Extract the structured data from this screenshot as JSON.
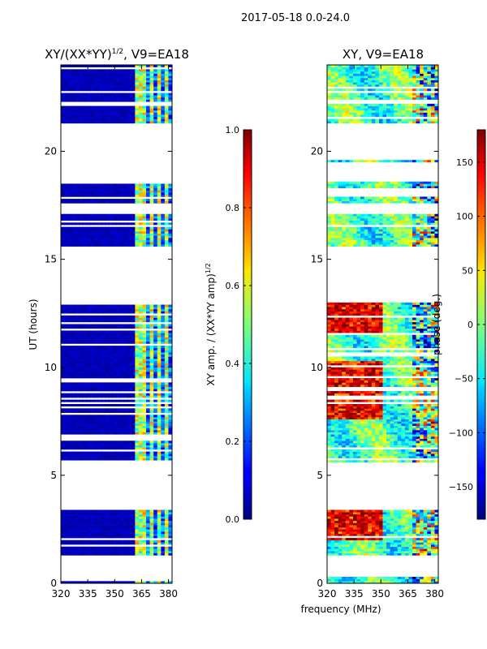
{
  "figure": {
    "suptitle": "2017-05-18 0.0-24.0",
    "xlabel": "frequency (MHz)"
  },
  "chart_data": [
    {
      "type": "heatmap",
      "title_main": "XY/(XX*YY)",
      "title_sup": "1/2",
      "title_rest": ", V9=EA18",
      "xlabel": "",
      "ylabel": "UT (hours)",
      "xlim": [
        320,
        382
      ],
      "ylim": [
        0,
        24
      ],
      "xticks": [
        320,
        335,
        350,
        365,
        380
      ],
      "yticks": [
        0,
        5,
        10,
        15,
        20
      ],
      "colorbar": {
        "label_main": "XY amp. / (XX*YY amp)",
        "label_sup": "1/2",
        "range": [
          0.0,
          1.0
        ],
        "ticks": [
          "0.0",
          "0.2",
          "0.4",
          "0.6",
          "0.8",
          "1.0"
        ],
        "tick_values": [
          0.0,
          0.2,
          0.4,
          0.6,
          0.8,
          1.0
        ]
      },
      "observed_bands_hours": [
        [
          0.0,
          0.3
        ],
        [
          1.3,
          3.4
        ],
        [
          5.5,
          12.9
        ],
        [
          15.5,
          17.0
        ],
        [
          17.5,
          18.5
        ],
        [
          19.5,
          19.6
        ],
        [
          21.3,
          24.0
        ]
      ],
      "hot_channels_mhz": [
        363.5,
        366.5,
        371.0,
        375.5,
        379.5
      ]
    },
    {
      "type": "heatmap",
      "title": "XY, V9=EA18",
      "xlabel": "",
      "ylabel": "",
      "xlim": [
        320,
        382
      ],
      "ylim": [
        0,
        24
      ],
      "xticks": [
        320,
        335,
        350,
        365,
        380
      ],
      "yticks": [
        0,
        5,
        10,
        15,
        20
      ],
      "colorbar": {
        "label": "phase (deg.)",
        "range": [
          -180,
          180
        ],
        "ticks": [
          "150",
          "100",
          "50",
          "0",
          "−50",
          "−100",
          "−150"
        ],
        "tick_values": [
          150,
          100,
          50,
          0,
          -50,
          -100,
          -150
        ]
      },
      "observed_bands_hours": [
        [
          0.0,
          0.3
        ],
        [
          1.3,
          3.4
        ],
        [
          5.5,
          12.9
        ],
        [
          15.5,
          17.0
        ],
        [
          17.5,
          18.5
        ],
        [
          19.5,
          19.6
        ],
        [
          21.3,
          24.0
        ]
      ]
    }
  ]
}
